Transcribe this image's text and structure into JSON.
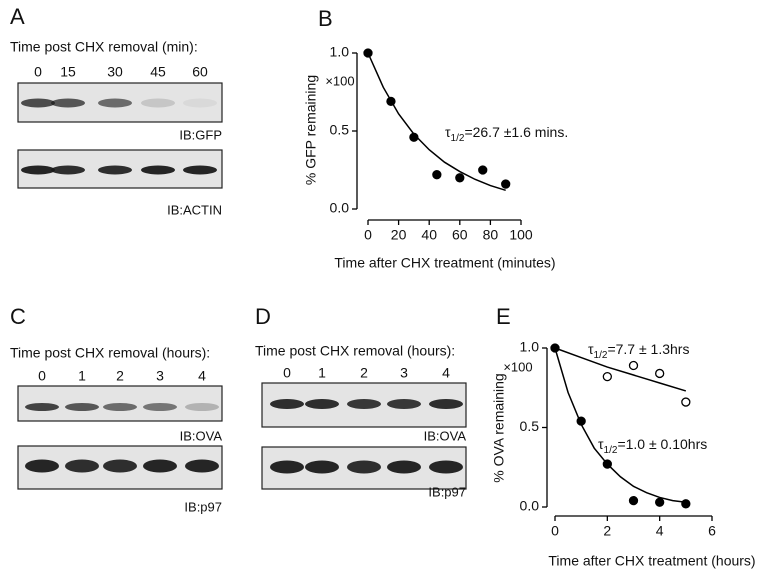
{
  "panels": [
    {
      "letter": "A",
      "caption": "Time post CHX removal (min):",
      "lanes": [
        "0",
        "15",
        "30",
        "45",
        "60"
      ],
      "blots": [
        "IB:GFP",
        "IB:ACTIN"
      ]
    },
    {
      "letter": "C",
      "caption": "Time post CHX removal (hours):",
      "lanes": [
        "0",
        "1",
        "2",
        "3",
        "4"
      ],
      "blots": [
        "IB:OVA",
        "IB:p97"
      ]
    },
    {
      "letter": "D",
      "caption": "Time post CHX removal (hours):",
      "lanes": [
        "0",
        "1",
        "2",
        "3",
        "4"
      ],
      "blots": [
        "IB:OVA",
        "IB:p97"
      ]
    }
  ],
  "chart_data": [
    {
      "label": "B",
      "type": "scatter",
      "x_label": "Time after CHX treatment (minutes)",
      "y_label": "% GFP remaining",
      "y_multiplier": "×100",
      "annotations": [
        {
          "symbol": "τ",
          "subscript": "1/2",
          "text": "=26.7 ±1.6 mins."
        }
      ],
      "series": [
        {
          "marker": "filled",
          "color": "#000000",
          "x": [
            0,
            15,
            30,
            45,
            60,
            75,
            90
          ],
          "values": [
            1.0,
            0.69,
            0.46,
            0.22,
            0.2,
            0.25,
            0.16
          ]
        },
        {
          "marker": "line",
          "color": "#000000",
          "x": [
            0,
            10,
            20,
            30,
            40,
            50,
            60,
            70,
            80,
            90
          ],
          "values": [
            1.0,
            0.78,
            0.61,
            0.48,
            0.38,
            0.3,
            0.24,
            0.19,
            0.15,
            0.12
          ]
        }
      ],
      "xlim": [
        0,
        100
      ],
      "xticks": [
        0,
        20,
        40,
        60,
        80,
        100
      ],
      "ylim": [
        0,
        1
      ],
      "yticks": [
        {
          "value": 0,
          "label": "0.0"
        },
        0.5,
        {
          "value": 1,
          "label": "1.0"
        }
      ]
    },
    {
      "label": "E",
      "type": "scatter",
      "x_label": "Time after CHX treatment (hours)",
      "y_label": "% OVA remaining",
      "y_multiplier": "×100",
      "annotations": [
        {
          "symbol": "τ",
          "subscript": "1/2",
          "text": "=7.7 ± 1.3hrs"
        },
        {
          "symbol": "τ",
          "subscript": "1/2",
          "text": "=1.0 ± 0.10hrs"
        }
      ],
      "series": [
        {
          "marker": "line",
          "color": "#000000",
          "x": [
            0,
            1,
            2,
            3,
            4,
            5
          ],
          "values": [
            1.0,
            0.94,
            0.88,
            0.83,
            0.78,
            0.73
          ]
        },
        {
          "marker": "line",
          "color": "#000000",
          "x": [
            0,
            0.5,
            1,
            1.5,
            2,
            2.5,
            3,
            3.5,
            4,
            4.5,
            5
          ],
          "values": [
            1.0,
            0.72,
            0.52,
            0.37,
            0.27,
            0.19,
            0.13,
            0.09,
            0.06,
            0.04,
            0.03
          ]
        },
        {
          "marker": "open",
          "color": "#000000",
          "x": [
            2,
            3,
            4,
            5
          ],
          "values": [
            0.82,
            0.89,
            0.84,
            0.66
          ]
        },
        {
          "marker": "filled",
          "color": "#000000",
          "x": [
            0,
            1,
            2,
            3,
            4,
            5
          ],
          "values": [
            1.0,
            0.54,
            0.27,
            0.04,
            0.03,
            0.02
          ]
        }
      ],
      "xlim": [
        0,
        6
      ],
      "xticks": [
        0,
        2,
        4,
        6
      ],
      "ylim": [
        0,
        1
      ],
      "yticks": [
        {
          "value": 0,
          "label": "0.0"
        },
        0.5,
        {
          "value": 1,
          "label": "1.0"
        }
      ]
    }
  ]
}
